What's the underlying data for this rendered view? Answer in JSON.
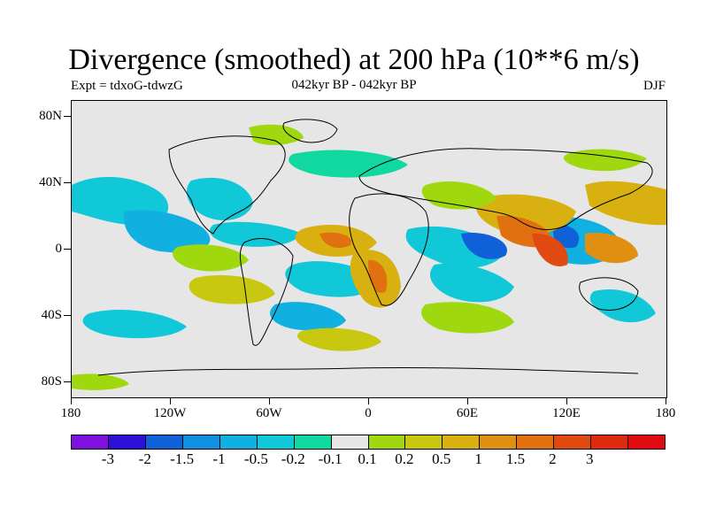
{
  "header": {
    "title": "Divergence (smoothed) at 200 hPa (10**6 m/s)",
    "experiment": "Expt = tdxoG-tdwzG",
    "period": "042kyr BP - 042kyr BP",
    "season": "DJF"
  },
  "map": {
    "lat_labels": [
      "80N",
      "40N",
      "0",
      "40S",
      "80S"
    ],
    "lon_labels": [
      "180",
      "120W",
      "60W",
      "0",
      "60E",
      "120E",
      "180"
    ],
    "background_color": "#e6e6e6"
  },
  "colorbar": {
    "colors": [
      "#7f10e0",
      "#2c10d8",
      "#1060d8",
      "#1090e0",
      "#10b0e0",
      "#10c8d8",
      "#10d8a0",
      "#e6e6e6",
      "#a0d810",
      "#c8c810",
      "#d8b010",
      "#e09010",
      "#e07010",
      "#e04a10",
      "#e02a10",
      "#e00a10"
    ],
    "labels": [
      "-3",
      "-2",
      "-1.5",
      "-1",
      "-0.5",
      "-0.2",
      "-0.1",
      "0.1",
      "0.2",
      "0.5",
      "1",
      "1.5",
      "2",
      "3"
    ]
  }
}
